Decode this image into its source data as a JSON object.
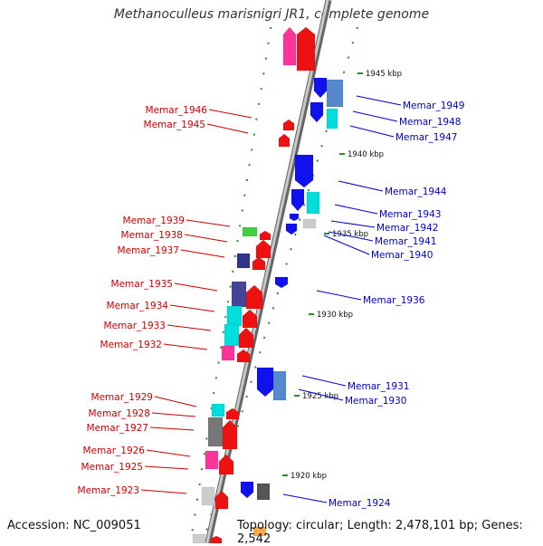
{
  "header": {
    "title": "Methanoculleus marisnigri JR1, complete genome"
  },
  "footer": {
    "accession": "Accession: NC_009051",
    "topology": "Topology: circular; Length: 2,478,101 bp; Genes: 2,542"
  },
  "colors": {
    "left_label": "#cc0000",
    "right_label": "#0000cc",
    "axis": "#888888",
    "ruler": "#2a8f2a"
  },
  "scale_labels": [
    "1945 kbp",
    "1940 kbp",
    "1935 kbp",
    "1930 kbp",
    "1925 kbp",
    "1920 kbp"
  ],
  "left_genes": [
    "Memar_1946",
    "Memar_1945",
    "Memar_1939",
    "Memar_1938",
    "Memar_1937",
    "Memar_1935",
    "Memar_1934",
    "Memar_1933",
    "Memar_1932",
    "Memar_1929",
    "Memar_1928",
    "Memar_1927",
    "Memar_1926",
    "Memar_1925",
    "Memar_1923"
  ],
  "right_genes": [
    "Memar_1949",
    "Memar_1948",
    "Memar_1947",
    "Memar_1944",
    "Memar_1943",
    "Memar_1942",
    "Memar_1941",
    "Memar_1940",
    "Memar_1936",
    "Memar_1931",
    "Memar_1930",
    "Memar_1924"
  ]
}
